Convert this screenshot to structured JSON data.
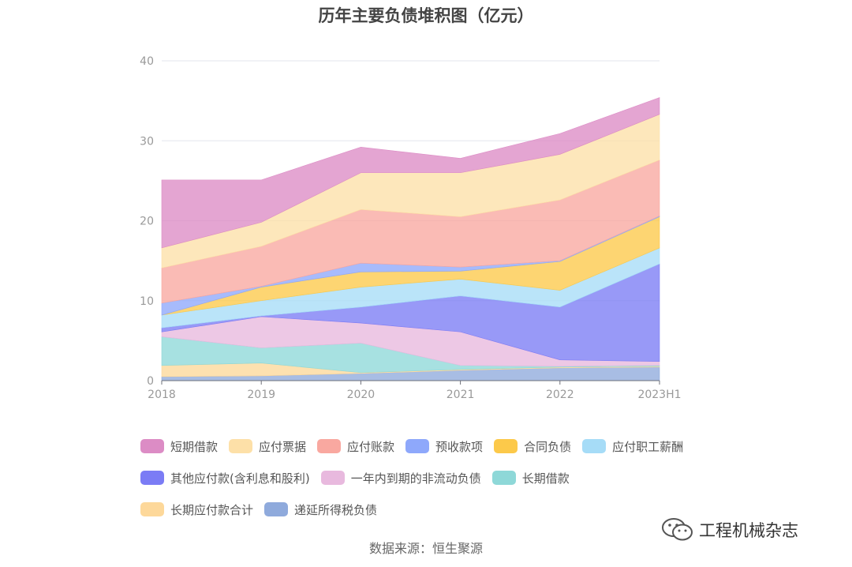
{
  "chart_data": {
    "type": "area",
    "stacked": true,
    "title": "历年主要负债堆积图（亿元）",
    "xlabel": "",
    "ylabel": "",
    "categories": [
      "2018",
      "2019",
      "2020",
      "2021",
      "2022",
      "2023H1"
    ],
    "ylim": [
      0,
      40
    ],
    "yticks": [
      0,
      10,
      20,
      30,
      40
    ],
    "grid": true,
    "legend_position": "bottom",
    "series": [
      {
        "name": "递延所得税负债",
        "color": "#8faadc",
        "values": [
          0.5,
          0.6,
          0.9,
          1.3,
          1.6,
          1.7
        ]
      },
      {
        "name": "长期应付款合计",
        "color": "#fdd89a",
        "values": [
          1.4,
          1.6,
          0.1,
          0.1,
          0.1,
          0.1
        ]
      },
      {
        "name": "长期借款",
        "color": "#8ed8d8",
        "values": [
          3.6,
          1.9,
          3.7,
          0.5,
          0.1,
          0.1
        ]
      },
      {
        "name": "一年内到期的非流动负债",
        "color": "#e8b9de",
        "values": [
          0.6,
          3.9,
          2.5,
          4.2,
          0.8,
          0.5
        ]
      },
      {
        "name": "其他应付款(含利息和股利)",
        "color": "#7b7cf5",
        "values": [
          0.5,
          0.1,
          2.0,
          4.5,
          6.6,
          12.2
        ]
      },
      {
        "name": "应付职工薪酬",
        "color": "#a6dcf7",
        "values": [
          1.6,
          1.9,
          2.5,
          2.1,
          2.1,
          2.0
        ]
      },
      {
        "name": "合同负债",
        "color": "#fcc94a",
        "values": [
          0,
          1.7,
          1.9,
          1.0,
          3.6,
          3.9
        ]
      },
      {
        "name": "预收款项",
        "color": "#8ea8fb",
        "values": [
          1.5,
          0.1,
          1.1,
          0.5,
          0.1,
          0.1
        ]
      },
      {
        "name": "应付账款",
        "color": "#f9a8a0",
        "values": [
          4.4,
          5.0,
          6.7,
          6.3,
          7.6,
          7.0
        ]
      },
      {
        "name": "应付票据",
        "color": "#fde0a8",
        "values": [
          2.5,
          3.0,
          4.6,
          5.5,
          5.7,
          5.7
        ]
      },
      {
        "name": "短期借款",
        "color": "#dc8cc5",
        "values": [
          8.5,
          5.3,
          3.2,
          1.8,
          2.6,
          2.1
        ]
      }
    ]
  },
  "legend_order": [
    "短期借款",
    "应付票据",
    "应付账款",
    "预收款项",
    "合同负债",
    "应付职工薪酬",
    "其他应付款(含利息和股利)",
    "一年内到期的非流动负债",
    "长期借款",
    "长期应付款合计",
    "递延所得税负债"
  ],
  "source": "数据来源：恒生聚源",
  "watermark": {
    "icon": "wechat-icon",
    "text": "工程机械杂志"
  }
}
